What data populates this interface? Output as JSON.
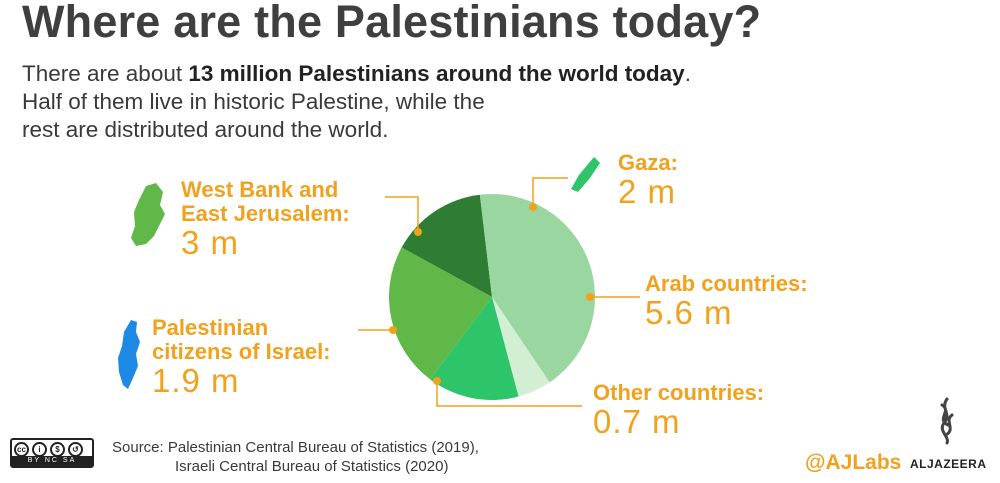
{
  "title": "Where are the Palestinians today?",
  "intro": {
    "line1_pre": "There are about ",
    "line1_bold": "13 million Palestinians around the world today",
    "line1_post": ".",
    "line2": "Half of them live in historic Palestine, while the",
    "line3": "rest are distributed around the world."
  },
  "chart_data": {
    "type": "pie",
    "title": "",
    "slices": [
      {
        "label": "Gaza:",
        "value_text": "2 m",
        "value": 2,
        "color": "#2e7d32"
      },
      {
        "label": "Arab countries:",
        "value_text": "5.6 m",
        "value": 5.6,
        "color": "#99d6a0"
      },
      {
        "label": "Other countries:",
        "value_text": "0.7 m",
        "value": 0.7,
        "color": "#d2efd4"
      },
      {
        "label": "Palestinian citizens of Israel:",
        "value_text": "1.9 m",
        "value": 1.9,
        "color": "#2ec46a"
      },
      {
        "label": "West Bank and East Jerusalem:",
        "value_text": "3 m",
        "value": 3,
        "color": "#5fb847"
      }
    ]
  },
  "labels": {
    "gaza": {
      "name": "Gaza:",
      "value": "2 m"
    },
    "westbank": {
      "line1": "West Bank and",
      "line2": "East Jerusalem:",
      "value": "3 m"
    },
    "arab": {
      "name": "Arab countries:",
      "value": "5.6 m"
    },
    "israel": {
      "line1": "Palestinian",
      "line2": "citizens of Israel:",
      "value": "1.9 m"
    },
    "other": {
      "name": "Other countries:",
      "value": "0.7 m"
    }
  },
  "source": {
    "line1": "Source: Palestinian Central Bureau of Statistics (2019),",
    "line2": "Israeli Central Bureau of Statistics  (2020)"
  },
  "license": {
    "badge": "BY  NC  SA"
  },
  "footer": {
    "handle": "@AJLabs",
    "brand": "ALJAZEERA"
  },
  "colors": {
    "accent": "#f2a11d",
    "leader": "#f2a11d",
    "map_west_bank": "#5fb847",
    "map_gaza": "#2ec46a",
    "map_israel": "#1e88e5"
  }
}
